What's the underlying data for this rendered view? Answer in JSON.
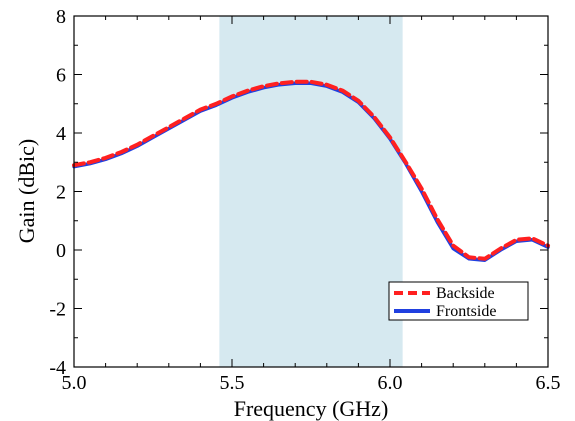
{
  "chart_data": {
    "type": "line",
    "title": "",
    "xlabel": "Frequency (GHz)",
    "ylabel": "Gain (dBic)",
    "xlim": [
      5.0,
      6.5
    ],
    "ylim": [
      -4,
      8
    ],
    "x_ticks": [
      "5.0",
      "5.5",
      "6.0",
      "6.5"
    ],
    "y_ticks": [
      "-4",
      "-2",
      "0",
      "2",
      "4",
      "6",
      "8"
    ],
    "grid": false,
    "legend_position": "bottom-right",
    "shaded_band": {
      "x_start": 5.46,
      "x_end": 6.04,
      "color": "#d6e9f0"
    },
    "series": [
      {
        "name": "Backside",
        "color": "#ff2020",
        "style": "dashed",
        "x": [
          5.0,
          5.05,
          5.1,
          5.15,
          5.2,
          5.25,
          5.3,
          5.35,
          5.4,
          5.45,
          5.5,
          5.55,
          5.6,
          5.65,
          5.7,
          5.75,
          5.8,
          5.85,
          5.9,
          5.95,
          6.0,
          6.05,
          6.1,
          6.15,
          6.2,
          6.25,
          6.3,
          6.35,
          6.4,
          6.45,
          6.5
        ],
        "y": [
          2.9,
          3.0,
          3.15,
          3.35,
          3.6,
          3.9,
          4.2,
          4.5,
          4.8,
          5.0,
          5.25,
          5.45,
          5.6,
          5.7,
          5.75,
          5.75,
          5.65,
          5.45,
          5.1,
          4.55,
          3.85,
          3.0,
          2.1,
          1.05,
          0.15,
          -0.25,
          -0.3,
          0.05,
          0.35,
          0.4,
          0.15
        ]
      },
      {
        "name": "Frontside",
        "color": "#2040e0",
        "style": "solid",
        "x": [
          5.0,
          5.05,
          5.1,
          5.15,
          5.2,
          5.25,
          5.3,
          5.35,
          5.4,
          5.45,
          5.5,
          5.55,
          5.6,
          5.65,
          5.7,
          5.75,
          5.8,
          5.85,
          5.9,
          5.95,
          6.0,
          6.05,
          6.1,
          6.15,
          6.2,
          6.25,
          6.3,
          6.35,
          6.4,
          6.45,
          6.5
        ],
        "y": [
          2.85,
          2.95,
          3.1,
          3.3,
          3.55,
          3.85,
          4.15,
          4.45,
          4.75,
          4.95,
          5.2,
          5.4,
          5.55,
          5.65,
          5.7,
          5.7,
          5.6,
          5.4,
          5.05,
          4.5,
          3.8,
          2.95,
          2.0,
          0.95,
          0.05,
          -0.3,
          -0.35,
          0.0,
          0.3,
          0.35,
          0.1
        ]
      }
    ]
  }
}
